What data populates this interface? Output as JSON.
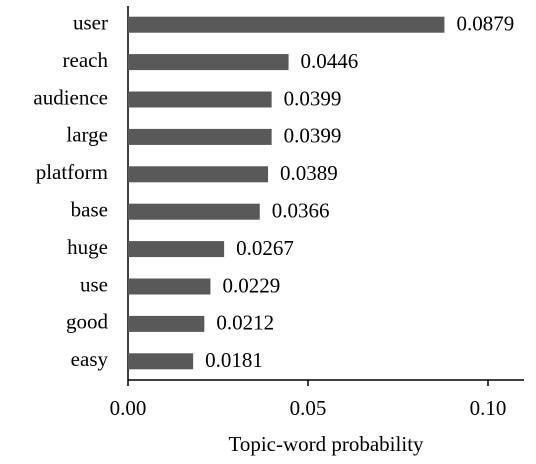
{
  "chart_data": {
    "type": "bar",
    "orientation": "horizontal",
    "x_label": "Topic-word probability",
    "categories": [
      "user",
      "reach",
      "audience",
      "large",
      "platform",
      "base",
      "huge",
      "use",
      "good",
      "easy"
    ],
    "values": [
      0.0879,
      0.0446,
      0.0399,
      0.0399,
      0.0389,
      0.0366,
      0.0267,
      0.0229,
      0.0212,
      0.0181
    ],
    "color": "#595959",
    "xlim": [
      0,
      0.11
    ],
    "xticks": [
      {
        "value": 0,
        "label": "0.00"
      },
      {
        "value": 0.05,
        "label": "0.05"
      },
      {
        "value": 0.1,
        "label": "0.10"
      }
    ]
  }
}
